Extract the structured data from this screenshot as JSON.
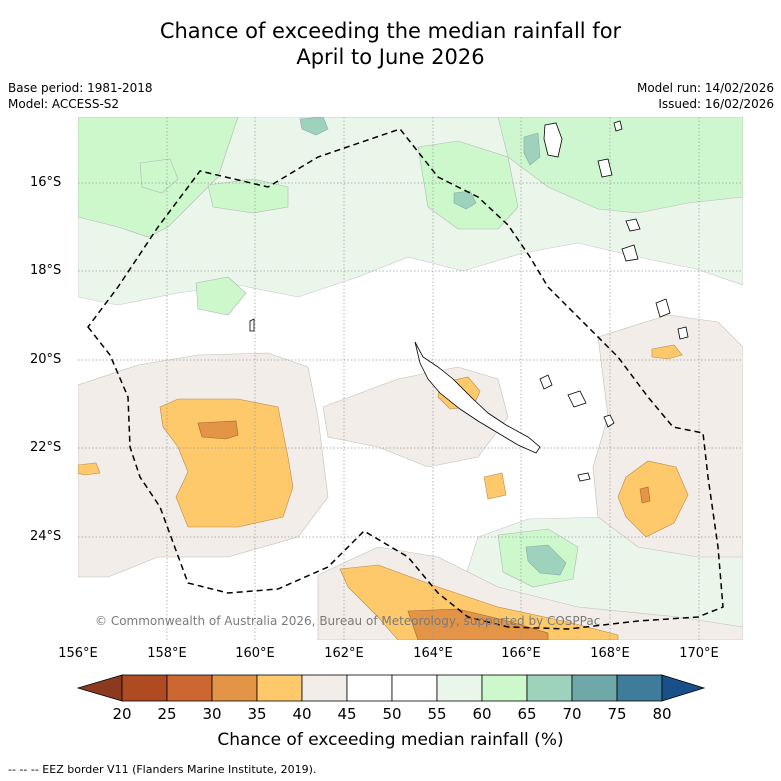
{
  "title": {
    "line1": "Chance of exceeding the median rainfall for",
    "line2": "April to June 2026"
  },
  "meta": {
    "base_period": "Base period: 1981-2018",
    "model": "Model: ACCESS-S2",
    "model_run": "Model run: 14/02/2026",
    "issued": "Issued: 16/02/2026"
  },
  "axes": {
    "lat_labels": [
      "16°S",
      "18°S",
      "20°S",
      "22°S",
      "24°S"
    ],
    "lon_labels": [
      "156°E",
      "158°E",
      "160°E",
      "162°E",
      "164°E",
      "166°E",
      "168°E",
      "170°E"
    ],
    "lon_range": [
      156,
      171
    ],
    "lat_range": [
      -14.8,
      -26.6
    ]
  },
  "copyright": "© Commonwealth of Australia 2026, Bureau of Meteorology, supported by COSPPac",
  "colorbar": {
    "ticks": [
      "20",
      "25",
      "30",
      "35",
      "40",
      "45",
      "50",
      "55",
      "60",
      "65",
      "70",
      "75",
      "80"
    ],
    "bins": [
      {
        "range": "20-25",
        "color": "#b04a22"
      },
      {
        "range": "25-30",
        "color": "#cc6633"
      },
      {
        "range": "30-35",
        "color": "#e39446"
      },
      {
        "range": "35-40",
        "color": "#fdc96b"
      },
      {
        "range": "40-45",
        "color": "#f2ede9"
      },
      {
        "range": "45-50",
        "color": "#ffffff"
      },
      {
        "range": "50-55",
        "color": "#ffffff"
      },
      {
        "range": "55-60",
        "color": "#ebf6eb"
      },
      {
        "range": "60-65",
        "color": "#ccf8cc"
      },
      {
        "range": "65-70",
        "color": "#9ed2bd"
      },
      {
        "range": "70-75",
        "color": "#6fa8a8"
      },
      {
        "range": "75-80",
        "color": "#3f7b9a"
      }
    ],
    "under_color": "#8c3a1f",
    "over_color": "#19508a",
    "label": "Chance of exceeding median rainfall (%)"
  },
  "footnote": "--  --  -- EEZ border V11 (Flanders Marine Institute, 2019)."
}
